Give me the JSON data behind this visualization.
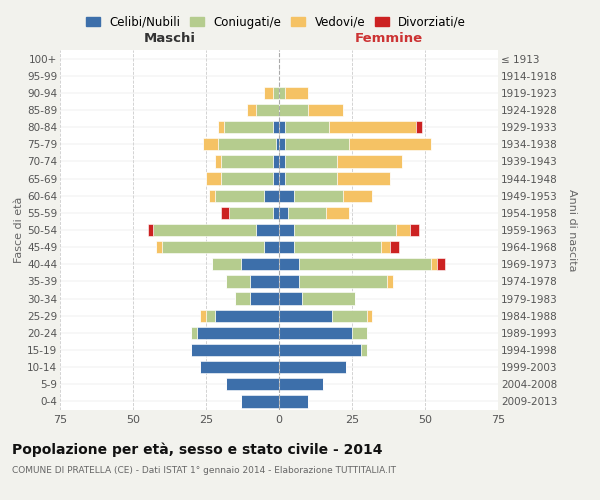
{
  "age_groups": [
    "0-4",
    "5-9",
    "10-14",
    "15-19",
    "20-24",
    "25-29",
    "30-34",
    "35-39",
    "40-44",
    "45-49",
    "50-54",
    "55-59",
    "60-64",
    "65-69",
    "70-74",
    "75-79",
    "80-84",
    "85-89",
    "90-94",
    "95-99",
    "100+"
  ],
  "birth_years": [
    "2009-2013",
    "2004-2008",
    "1999-2003",
    "1994-1998",
    "1989-1993",
    "1984-1988",
    "1979-1983",
    "1974-1978",
    "1969-1973",
    "1964-1968",
    "1959-1963",
    "1954-1958",
    "1949-1953",
    "1944-1948",
    "1939-1943",
    "1934-1938",
    "1929-1933",
    "1924-1928",
    "1919-1923",
    "1914-1918",
    "≤ 1913"
  ],
  "maschi_celibi": [
    13,
    18,
    27,
    30,
    28,
    22,
    10,
    10,
    13,
    5,
    8,
    2,
    5,
    2,
    2,
    1,
    2,
    0,
    0,
    0,
    0
  ],
  "maschi_coniugati": [
    0,
    0,
    0,
    0,
    2,
    3,
    5,
    8,
    10,
    35,
    35,
    15,
    17,
    18,
    18,
    20,
    17,
    8,
    2,
    0,
    0
  ],
  "maschi_vedovi": [
    0,
    0,
    0,
    0,
    0,
    2,
    0,
    0,
    0,
    2,
    0,
    0,
    2,
    5,
    2,
    5,
    2,
    3,
    3,
    0,
    0
  ],
  "maschi_divorziati": [
    0,
    0,
    0,
    0,
    0,
    0,
    0,
    0,
    0,
    0,
    2,
    3,
    0,
    0,
    0,
    0,
    0,
    0,
    0,
    0,
    0
  ],
  "femmine_nubili": [
    10,
    15,
    23,
    28,
    25,
    18,
    8,
    7,
    7,
    5,
    5,
    3,
    5,
    2,
    2,
    2,
    2,
    0,
    0,
    0,
    0
  ],
  "femmine_coniugate": [
    0,
    0,
    0,
    2,
    5,
    12,
    18,
    30,
    45,
    30,
    35,
    13,
    17,
    18,
    18,
    22,
    15,
    10,
    2,
    0,
    0
  ],
  "femmine_vedove": [
    0,
    0,
    0,
    0,
    0,
    2,
    0,
    2,
    2,
    3,
    5,
    8,
    10,
    18,
    22,
    28,
    30,
    12,
    8,
    0,
    0
  ],
  "femmine_divorziate": [
    0,
    0,
    0,
    0,
    0,
    0,
    0,
    0,
    3,
    3,
    3,
    0,
    0,
    0,
    0,
    0,
    2,
    0,
    0,
    0,
    0
  ],
  "color_celibi": "#3d6faa",
  "color_coniugati": "#b5cc8e",
  "color_vedovi": "#f5c264",
  "color_divorziati": "#cc2222",
  "xlim": 75,
  "legend_labels": [
    "Celibi/Nubili",
    "Coniugati/e",
    "Vedovi/e",
    "Divorziati/e"
  ],
  "label_maschi": "Maschi",
  "label_femmine": "Femmine",
  "ylabel_left": "Fasce di età",
  "ylabel_right": "Anni di nascita",
  "title": "Popolazione per età, sesso e stato civile - 2014",
  "subtitle": "COMUNE DI PRATELLA (CE) - Dati ISTAT 1° gennaio 2014 - Elaborazione TUTTITALIA.IT",
  "bg_color": "#f2f2ed",
  "bar_bg_color": "#ffffff",
  "grid_color": "#cccccc"
}
